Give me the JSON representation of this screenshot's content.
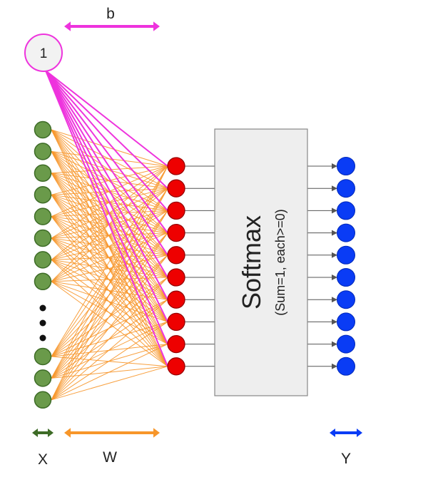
{
  "bias": {
    "node_label": "1",
    "arrow_label": "b"
  },
  "softmax": {
    "title": "Softmax",
    "subtitle": "(Sum=1, each>=0)"
  },
  "axis_labels": {
    "x": "X",
    "w": "W",
    "y": "Y"
  },
  "input_layer": {
    "nodes_top": 8,
    "nodes_bottom": 3,
    "ellipsis_dots": 3
  },
  "hidden_layer": {
    "nodes": 10
  },
  "output_layer": {
    "nodes": 10
  },
  "colors": {
    "input": "#6a9a4a",
    "input_stroke": "#3d6b26",
    "weights": "#f7962a",
    "bias": "#ee33dd",
    "bias_fill": "#f2f2f2",
    "hidden": "#ee0000",
    "hidden_stroke": "#990000",
    "output": "#0a3cf5",
    "output_stroke": "#0028b8",
    "box_fill": "#eeeeee",
    "box_stroke": "#888888",
    "connector": "#555555"
  }
}
